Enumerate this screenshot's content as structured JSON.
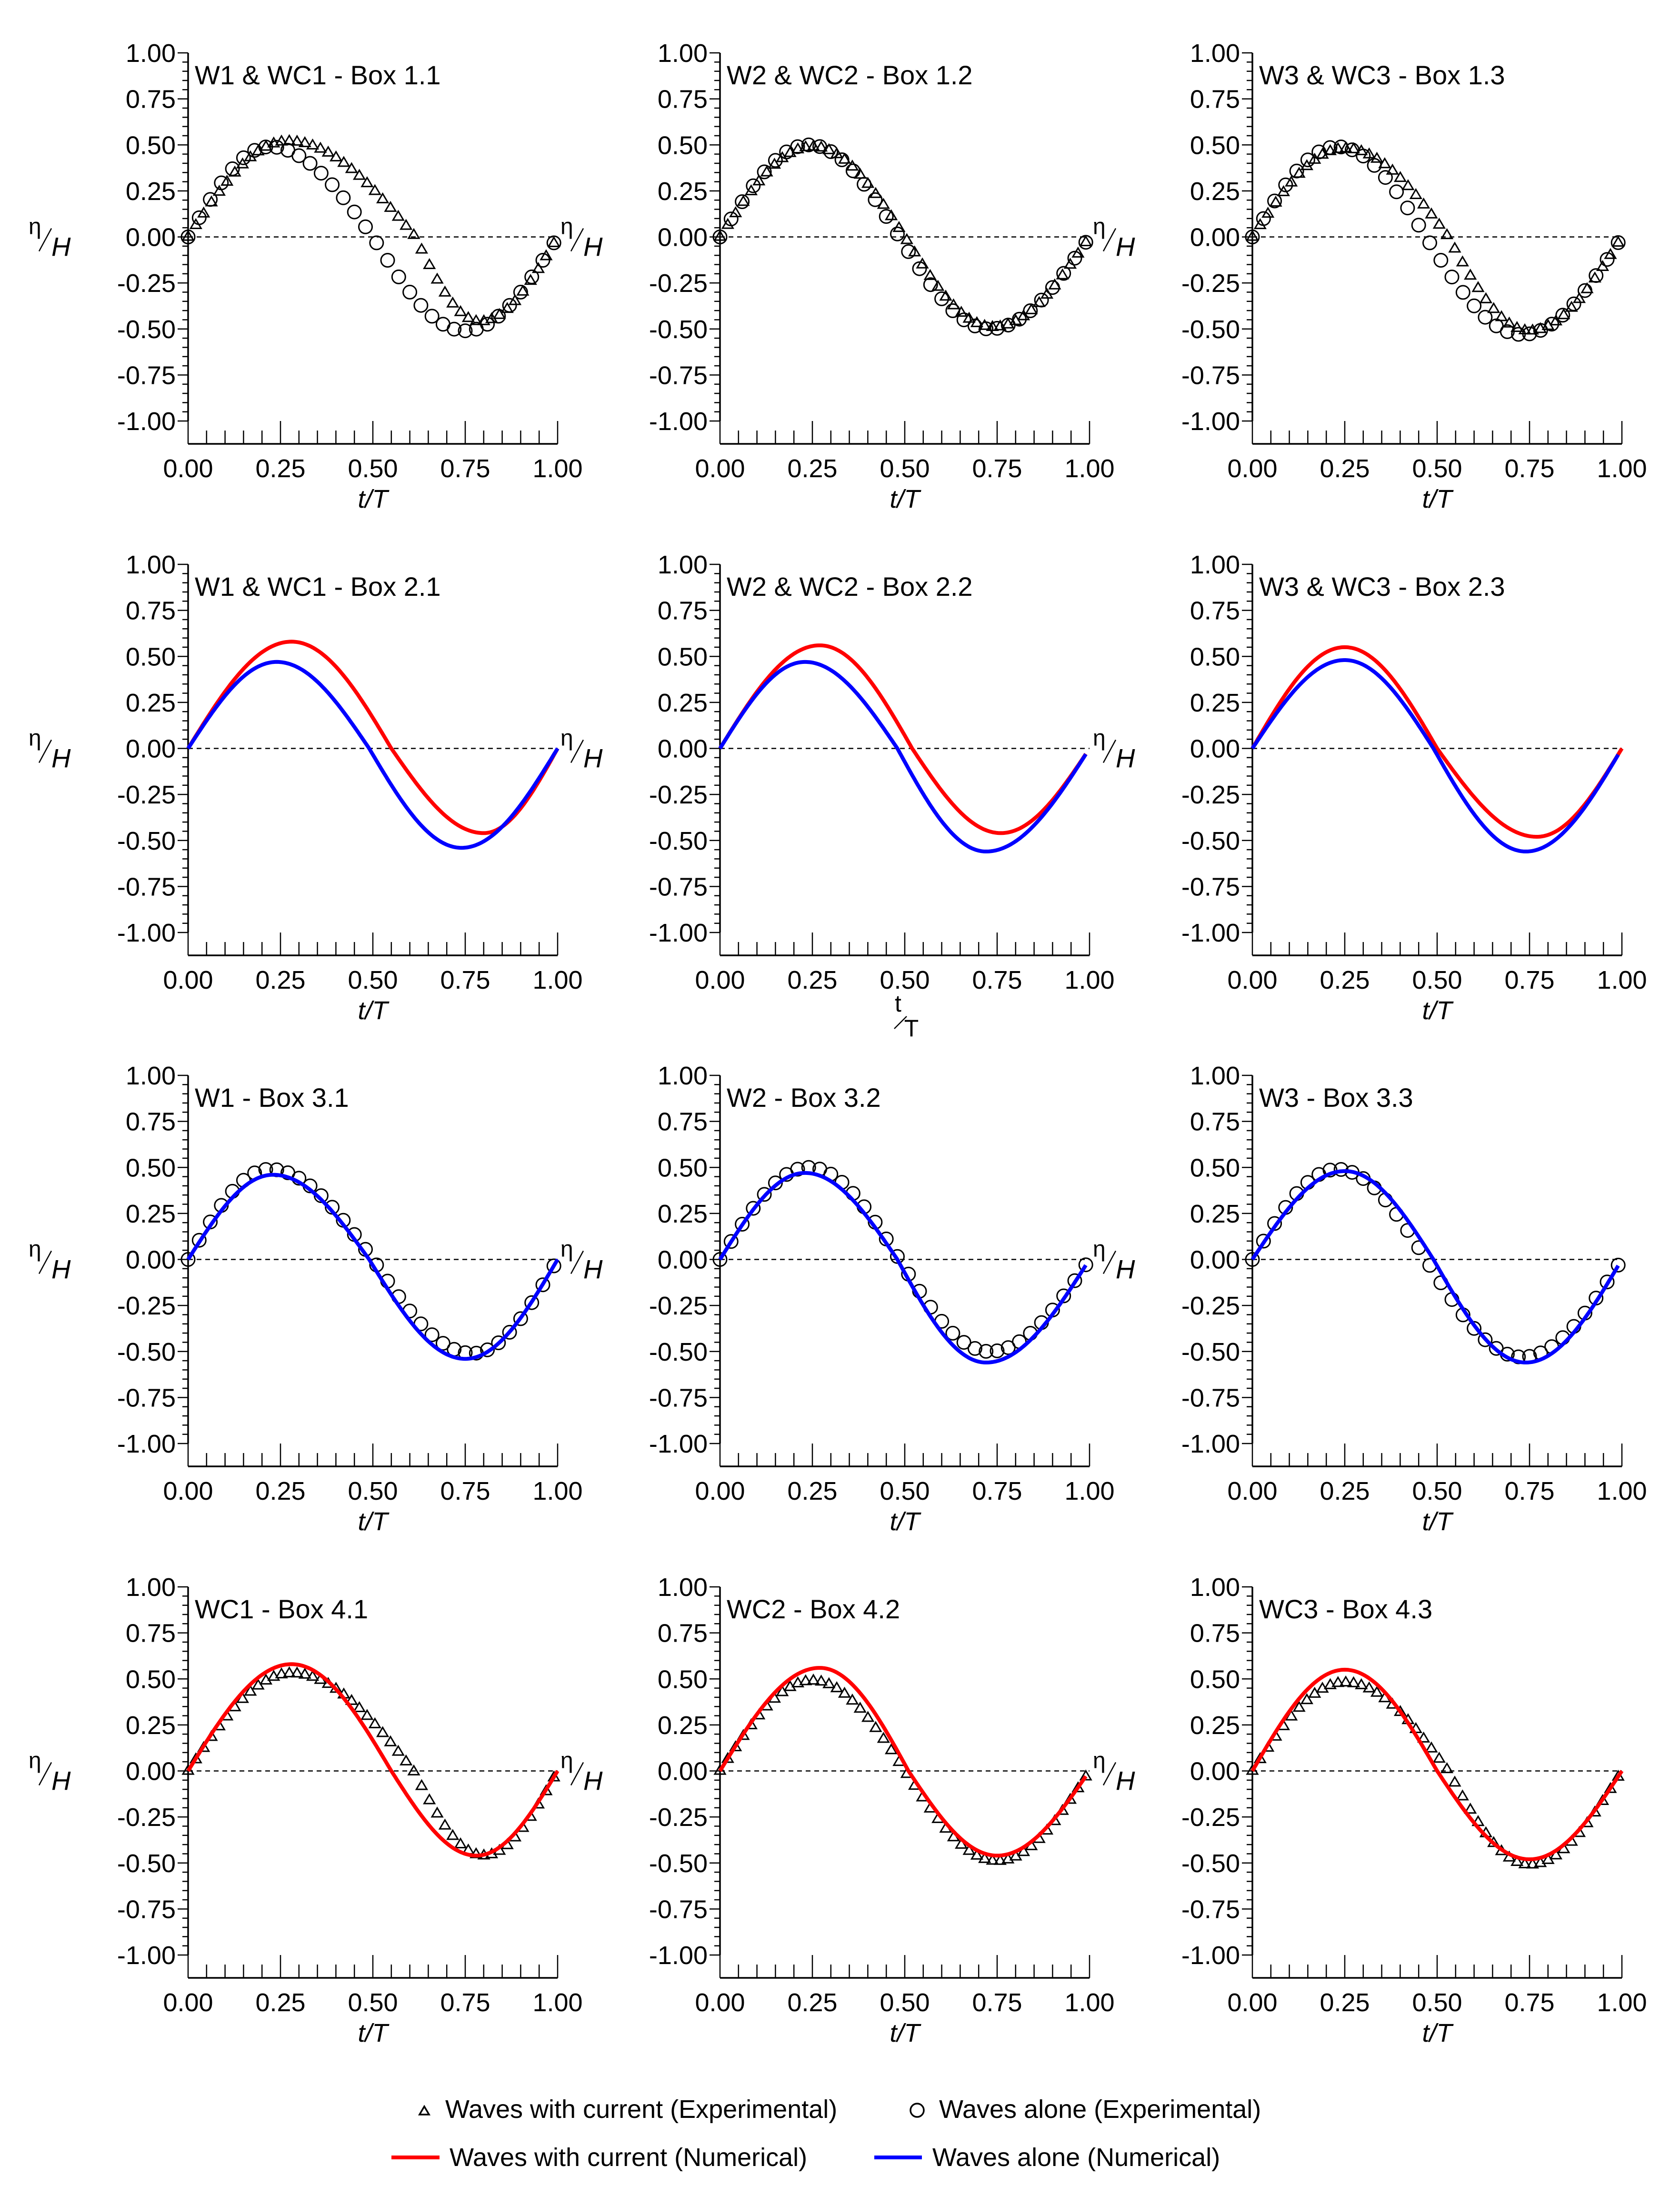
{
  "figure": {
    "ylabel": {
      "base": "η",
      "sub": "H"
    },
    "colors": {
      "with_current": "#ff0000",
      "alone": "#0000ff",
      "marker": "#000000",
      "axis": "#000000",
      "zero_line": "#000000"
    }
  },
  "legend": {
    "with_current_exp": "Waves with current (Experimental)",
    "alone_exp": "Waves alone (Experimental)",
    "with_current_num": "Waves with current (Numerical)",
    "alone_num": "Waves alone (Numerical)"
  },
  "chart_data": [
    {
      "type": "line",
      "title": "W1 & WC1 - Box 1.1",
      "xlabel": "t/T",
      "xlabel_style": "italic",
      "ylabel": "η/H",
      "xlim": [
        0,
        1
      ],
      "ylim": [
        -1,
        1
      ],
      "xticks": [
        "0.00",
        "0.25",
        "0.50",
        "0.75",
        "1.00"
      ],
      "yticks": [
        "1.00",
        "0.75",
        "0.50",
        "0.25",
        "0.00",
        "-0.25",
        "-0.50",
        "-0.75",
        "-1.00"
      ],
      "zero_line": "dashed",
      "series": [
        {
          "name": "Waves with current (Experimental)",
          "kind": "triangles",
          "amp_pos": 0.52,
          "amp_neg": 0.46,
          "t_peak": 0.27,
          "t_trough": 0.79,
          "t_zero": 0.615,
          "count": 48,
          "t_start": 0.0,
          "t_end": 0.99
        },
        {
          "name": "Waves alone (Experimental)",
          "kind": "circles",
          "amp_pos": 0.49,
          "amp_neg": 0.51,
          "t_peak": 0.22,
          "t_trough": 0.75,
          "t_zero": 0.5,
          "count": 34,
          "t_start": 0.0,
          "t_end": 0.99
        }
      ]
    },
    {
      "type": "line",
      "title": "W2 & WC2 - Box 1.2",
      "xlabel": "t/T",
      "xlabel_style": "italic",
      "ylabel": "η/H",
      "xlim": [
        0,
        1
      ],
      "ylim": [
        -1,
        1
      ],
      "xticks": [
        "0.00",
        "0.25",
        "0.50",
        "0.75",
        "1.00"
      ],
      "yticks": [
        "1.00",
        "0.75",
        "0.50",
        "0.25",
        "0.00",
        "-0.25",
        "-0.50",
        "-0.75",
        "-1.00"
      ],
      "zero_line": "dashed",
      "series": [
        {
          "name": "Waves with current (Experimental)",
          "kind": "triangles",
          "amp_pos": 0.49,
          "amp_neg": 0.49,
          "t_peak": 0.25,
          "t_trough": 0.74,
          "t_zero": 0.5,
          "count": 48,
          "t_start": 0.0,
          "t_end": 0.99
        },
        {
          "name": "Waves alone (Experimental)",
          "kind": "circles",
          "amp_pos": 0.5,
          "amp_neg": 0.5,
          "t_peak": 0.24,
          "t_trough": 0.73,
          "t_zero": 0.485,
          "count": 34,
          "t_start": 0.0,
          "t_end": 0.99
        }
      ]
    },
    {
      "type": "line",
      "title": "W3 & WC3 - Box 1.3",
      "xlabel": "t/T",
      "xlabel_style": "italic",
      "ylabel": "η/H",
      "xlim": [
        0,
        1
      ],
      "ylim": [
        -1,
        1
      ],
      "xticks": [
        "0.00",
        "0.25",
        "0.50",
        "0.75",
        "1.00"
      ],
      "yticks": [
        "1.00",
        "0.75",
        "0.50",
        "0.25",
        "0.00",
        "-0.25",
        "-0.50",
        "-0.75",
        "-1.00"
      ],
      "zero_line": "dashed",
      "series": [
        {
          "name": "Waves with current (Experimental)",
          "kind": "triangles",
          "amp_pos": 0.48,
          "amp_neg": 0.51,
          "t_peak": 0.25,
          "t_trough": 0.75,
          "t_zero": 0.53,
          "count": 48,
          "t_start": 0.0,
          "t_end": 0.99
        },
        {
          "name": "Waves alone (Experimental)",
          "kind": "circles",
          "amp_pos": 0.49,
          "amp_neg": 0.53,
          "t_peak": 0.23,
          "t_trough": 0.73,
          "t_zero": 0.47,
          "count": 34,
          "t_start": 0.0,
          "t_end": 0.99
        }
      ]
    },
    {
      "type": "line",
      "title": "W1 & WC1 - Box 2.1",
      "xlabel": "t/T",
      "xlabel_style": "italic",
      "ylabel": "η/H",
      "xlim": [
        0,
        1
      ],
      "ylim": [
        -1,
        1
      ],
      "xticks": [
        "0.00",
        "0.25",
        "0.50",
        "0.75",
        "1.00"
      ],
      "yticks": [
        "1.00",
        "0.75",
        "0.50",
        "0.25",
        "0.00",
        "-0.25",
        "-0.50",
        "-0.75",
        "-1.00"
      ],
      "zero_line": "dashed",
      "series": [
        {
          "name": "Waves with current (Numerical)",
          "kind": "line",
          "color": "#ff0000",
          "amp_pos": 0.58,
          "amp_neg": 0.46,
          "t_peak": 0.28,
          "t_trough": 0.8,
          "t_zero": 0.55,
          "t_start": 0.0,
          "t_end": 1.0
        },
        {
          "name": "Waves alone (Numerical)",
          "kind": "line",
          "color": "#0000ff",
          "amp_pos": 0.47,
          "amp_neg": 0.54,
          "t_peak": 0.24,
          "t_trough": 0.74,
          "t_zero": 0.49,
          "t_start": 0.0,
          "t_end": 1.0
        }
      ]
    },
    {
      "type": "line",
      "title": "W2 & WC2 - Box 2.2",
      "xlabel": "t/T",
      "xlabel_style": "stacked",
      "ylabel": "η/H",
      "xlim": [
        0,
        1
      ],
      "ylim": [
        -1,
        1
      ],
      "xticks": [
        "0.00",
        "0.25",
        "0.50",
        "0.75",
        "1.00"
      ],
      "yticks": [
        "1.00",
        "0.75",
        "0.50",
        "0.25",
        "0.00",
        "-0.25",
        "-0.50",
        "-0.75",
        "-1.00"
      ],
      "zero_line": "dashed",
      "series": [
        {
          "name": "Waves with current (Numerical)",
          "kind": "line",
          "color": "#ff0000",
          "amp_pos": 0.56,
          "amp_neg": 0.46,
          "t_peak": 0.27,
          "t_trough": 0.76,
          "t_zero": 0.52,
          "t_start": 0.0,
          "t_end": 0.99
        },
        {
          "name": "Waves alone (Numerical)",
          "kind": "line",
          "color": "#0000ff",
          "amp_pos": 0.47,
          "amp_neg": 0.56,
          "t_peak": 0.23,
          "t_trough": 0.72,
          "t_zero": 0.48,
          "t_start": 0.0,
          "t_end": 0.99
        }
      ]
    },
    {
      "type": "line",
      "title": "W3 & WC3 - Box 2.3",
      "xlabel": "t/T",
      "xlabel_style": "italic",
      "ylabel": "η/H",
      "xlim": [
        0,
        1
      ],
      "ylim": [
        -1,
        1
      ],
      "xticks": [
        "0.00",
        "0.25",
        "0.50",
        "0.75",
        "1.00"
      ],
      "yticks": [
        "1.00",
        "0.75",
        "0.50",
        "0.25",
        "0.00",
        "-0.25",
        "-0.50",
        "-0.75",
        "-1.00"
      ],
      "zero_line": "dashed",
      "series": [
        {
          "name": "Waves with current (Numerical)",
          "kind": "line",
          "color": "#ff0000",
          "amp_pos": 0.55,
          "amp_neg": 0.48,
          "t_peak": 0.25,
          "t_trough": 0.77,
          "t_zero": 0.5,
          "t_start": 0.0,
          "t_end": 1.0
        },
        {
          "name": "Waves alone (Numerical)",
          "kind": "line",
          "color": "#0000ff",
          "amp_pos": 0.48,
          "amp_neg": 0.56,
          "t_peak": 0.25,
          "t_trough": 0.74,
          "t_zero": 0.49,
          "t_start": 0.0,
          "t_end": 0.99
        }
      ]
    },
    {
      "type": "line",
      "title": "W1 - Box 3.1",
      "xlabel": "t/T",
      "xlabel_style": "italic",
      "ylabel": "η/H",
      "xlim": [
        0,
        1
      ],
      "ylim": [
        -1,
        1
      ],
      "xticks": [
        "0.00",
        "0.25",
        "0.50",
        "0.75",
        "1.00"
      ],
      "yticks": [
        "1.00",
        "0.75",
        "0.50",
        "0.25",
        "0.00",
        "-0.25",
        "-0.50",
        "-0.75",
        "-1.00"
      ],
      "zero_line": "dashed",
      "series": [
        {
          "name": "Waves alone (Experimental)",
          "kind": "circles",
          "amp_pos": 0.49,
          "amp_neg": 0.51,
          "t_peak": 0.22,
          "t_trough": 0.77,
          "t_zero": 0.5,
          "count": 34,
          "t_start": 0.0,
          "t_end": 0.99
        },
        {
          "name": "Waves alone (Numerical)",
          "kind": "line",
          "color": "#0000ff",
          "amp_pos": 0.46,
          "amp_neg": 0.54,
          "t_peak": 0.23,
          "t_trough": 0.75,
          "t_zero": 0.49,
          "t_start": 0.0,
          "t_end": 1.0
        }
      ]
    },
    {
      "type": "line",
      "title": "W2 - Box 3.2",
      "xlabel": "t/T",
      "xlabel_style": "italic",
      "ylabel": "η/H",
      "xlim": [
        0,
        1
      ],
      "ylim": [
        -1,
        1
      ],
      "xticks": [
        "0.00",
        "0.25",
        "0.50",
        "0.75",
        "1.00"
      ],
      "yticks": [
        "1.00",
        "0.75",
        "0.50",
        "0.25",
        "0.00",
        "-0.25",
        "-0.50",
        "-0.75",
        "-1.00"
      ],
      "zero_line": "dashed",
      "series": [
        {
          "name": "Waves alone (Experimental)",
          "kind": "circles",
          "amp_pos": 0.5,
          "amp_neg": 0.5,
          "t_peak": 0.24,
          "t_trough": 0.73,
          "t_zero": 0.485,
          "count": 34,
          "t_start": 0.0,
          "t_end": 0.99
        },
        {
          "name": "Waves alone (Numerical)",
          "kind": "line",
          "color": "#0000ff",
          "amp_pos": 0.47,
          "amp_neg": 0.56,
          "t_peak": 0.23,
          "t_trough": 0.72,
          "t_zero": 0.48,
          "t_start": 0.0,
          "t_end": 0.99
        }
      ]
    },
    {
      "type": "line",
      "title": "W3 - Box 3.3",
      "xlabel": "t/T",
      "xlabel_style": "italic",
      "ylabel": "η/H",
      "xlim": [
        0,
        1
      ],
      "ylim": [
        -1,
        1
      ],
      "xticks": [
        "0.00",
        "0.25",
        "0.50",
        "0.75",
        "1.00"
      ],
      "yticks": [
        "1.00",
        "0.75",
        "0.50",
        "0.25",
        "0.00",
        "-0.25",
        "-0.50",
        "-0.75",
        "-1.00"
      ],
      "zero_line": "dashed",
      "series": [
        {
          "name": "Waves alone (Experimental)",
          "kind": "circles",
          "amp_pos": 0.49,
          "amp_neg": 0.53,
          "t_peak": 0.23,
          "t_trough": 0.73,
          "t_zero": 0.47,
          "count": 34,
          "t_start": 0.0,
          "t_end": 0.99
        },
        {
          "name": "Waves alone (Numerical)",
          "kind": "line",
          "color": "#0000ff",
          "amp_pos": 0.48,
          "amp_neg": 0.56,
          "t_peak": 0.25,
          "t_trough": 0.74,
          "t_zero": 0.49,
          "t_start": 0.0,
          "t_end": 0.99
        }
      ]
    },
    {
      "type": "line",
      "title": "WC1 - Box 4.1",
      "xlabel": "t/T",
      "xlabel_style": "italic",
      "ylabel": "η/H",
      "xlim": [
        0,
        1
      ],
      "ylim": [
        -1,
        1
      ],
      "xticks": [
        "0.00",
        "0.25",
        "0.50",
        "0.75",
        "1.00"
      ],
      "yticks": [
        "1.00",
        "0.75",
        "0.50",
        "0.25",
        "0.00",
        "-0.25",
        "-0.50",
        "-0.75",
        "-1.00"
      ],
      "zero_line": "dashed",
      "series": [
        {
          "name": "Waves with current (Experimental)",
          "kind": "triangles",
          "amp_pos": 0.53,
          "amp_neg": 0.46,
          "t_peak": 0.28,
          "t_trough": 0.8,
          "t_zero": 0.61,
          "count": 48,
          "t_start": 0.0,
          "t_end": 0.99
        },
        {
          "name": "Waves with current (Numerical)",
          "kind": "line",
          "color": "#ff0000",
          "amp_pos": 0.58,
          "amp_neg": 0.46,
          "t_peak": 0.28,
          "t_trough": 0.78,
          "t_zero": 0.55,
          "t_start": 0.0,
          "t_end": 1.0
        }
      ]
    },
    {
      "type": "line",
      "title": "WC2 - Box 4.2",
      "xlabel": "t/T",
      "xlabel_style": "italic",
      "ylabel": "η/H",
      "xlim": [
        0,
        1
      ],
      "ylim": [
        -1,
        1
      ],
      "xticks": [
        "0.00",
        "0.25",
        "0.50",
        "0.75",
        "1.00"
      ],
      "yticks": [
        "1.00",
        "0.75",
        "0.50",
        "0.25",
        "0.00",
        "-0.25",
        "-0.50",
        "-0.75",
        "-1.00"
      ],
      "zero_line": "dashed",
      "series": [
        {
          "name": "Waves with current (Experimental)",
          "kind": "triangles",
          "amp_pos": 0.49,
          "amp_neg": 0.49,
          "t_peak": 0.25,
          "t_trough": 0.75,
          "t_zero": 0.5,
          "count": 48,
          "t_start": 0.0,
          "t_end": 0.99
        },
        {
          "name": "Waves with current (Numerical)",
          "kind": "line",
          "color": "#ff0000",
          "amp_pos": 0.56,
          "amp_neg": 0.46,
          "t_peak": 0.27,
          "t_trough": 0.75,
          "t_zero": 0.51,
          "t_start": 0.0,
          "t_end": 0.99
        }
      ]
    },
    {
      "type": "line",
      "title": "WC3 - Box 4.3",
      "xlabel": "t/T",
      "xlabel_style": "italic",
      "ylabel": "η/H",
      "xlim": [
        0,
        1
      ],
      "ylim": [
        -1,
        1
      ],
      "xticks": [
        "0.00",
        "0.25",
        "0.50",
        "0.75",
        "1.00"
      ],
      "yticks": [
        "1.00",
        "0.75",
        "0.50",
        "0.25",
        "0.00",
        "-0.25",
        "-0.50",
        "-0.75",
        "-1.00"
      ],
      "zero_line": "dashed",
      "series": [
        {
          "name": "Waves with current (Experimental)",
          "kind": "triangles",
          "amp_pos": 0.48,
          "amp_neg": 0.51,
          "t_peak": 0.25,
          "t_trough": 0.75,
          "t_zero": 0.53,
          "count": 48,
          "t_start": 0.0,
          "t_end": 0.99
        },
        {
          "name": "Waves with current (Numerical)",
          "kind": "line",
          "color": "#ff0000",
          "amp_pos": 0.55,
          "amp_neg": 0.48,
          "t_peak": 0.25,
          "t_trough": 0.75,
          "t_zero": 0.5,
          "t_start": 0.0,
          "t_end": 1.0
        }
      ]
    }
  ]
}
